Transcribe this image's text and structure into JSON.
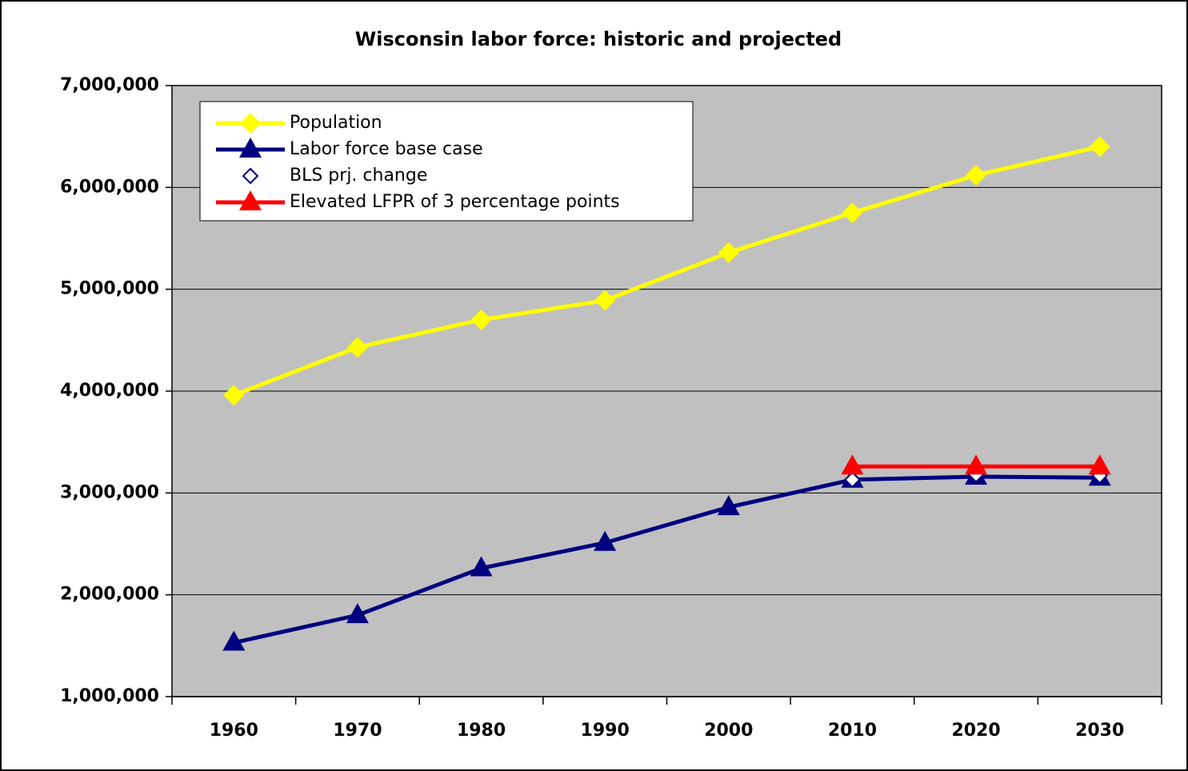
{
  "chart_data": {
    "type": "line",
    "title": "Wisconsin labor force: historic and projected",
    "categories": [
      "1960",
      "1970",
      "1980",
      "1990",
      "2000",
      "2010",
      "2020",
      "2030"
    ],
    "series": [
      {
        "name": "Population",
        "color": "#ffff00",
        "marker": "diamond",
        "line": true,
        "values": [
          3960000,
          4430000,
          4700000,
          4890000,
          5360000,
          5750000,
          6120000,
          6400000
        ]
      },
      {
        "name": "Labor force base case",
        "color": "#000080",
        "marker": "triangle",
        "line": true,
        "values": [
          1530000,
          1800000,
          2260000,
          2510000,
          2860000,
          3130000,
          3160000,
          3150000
        ]
      },
      {
        "name": "BLS prj. change",
        "color": "#000080",
        "marker": "open-diamond",
        "line": false,
        "values": [
          null,
          null,
          null,
          null,
          null,
          3130000,
          3180000,
          3170000
        ]
      },
      {
        "name": "Elevated LFPR of 3 percentage points",
        "color": "#ff0000",
        "marker": "triangle",
        "line": true,
        "values": [
          null,
          null,
          null,
          null,
          null,
          3260000,
          3260000,
          3260000
        ]
      }
    ],
    "ylim": [
      1000000,
      7000000
    ],
    "yticks": [
      {
        "value": 1000000,
        "label": "1,000,000"
      },
      {
        "value": 2000000,
        "label": "2,000,000"
      },
      {
        "value": 3000000,
        "label": "3,000,000"
      },
      {
        "value": 4000000,
        "label": "4,000,000"
      },
      {
        "value": 5000000,
        "label": "5,000,000"
      },
      {
        "value": 6000000,
        "label": "6,000,000"
      },
      {
        "value": 7000000,
        "label": "7,000,000"
      }
    ],
    "grid": true,
    "legend": "upper-left",
    "plot_background": "#c0c0c0"
  }
}
